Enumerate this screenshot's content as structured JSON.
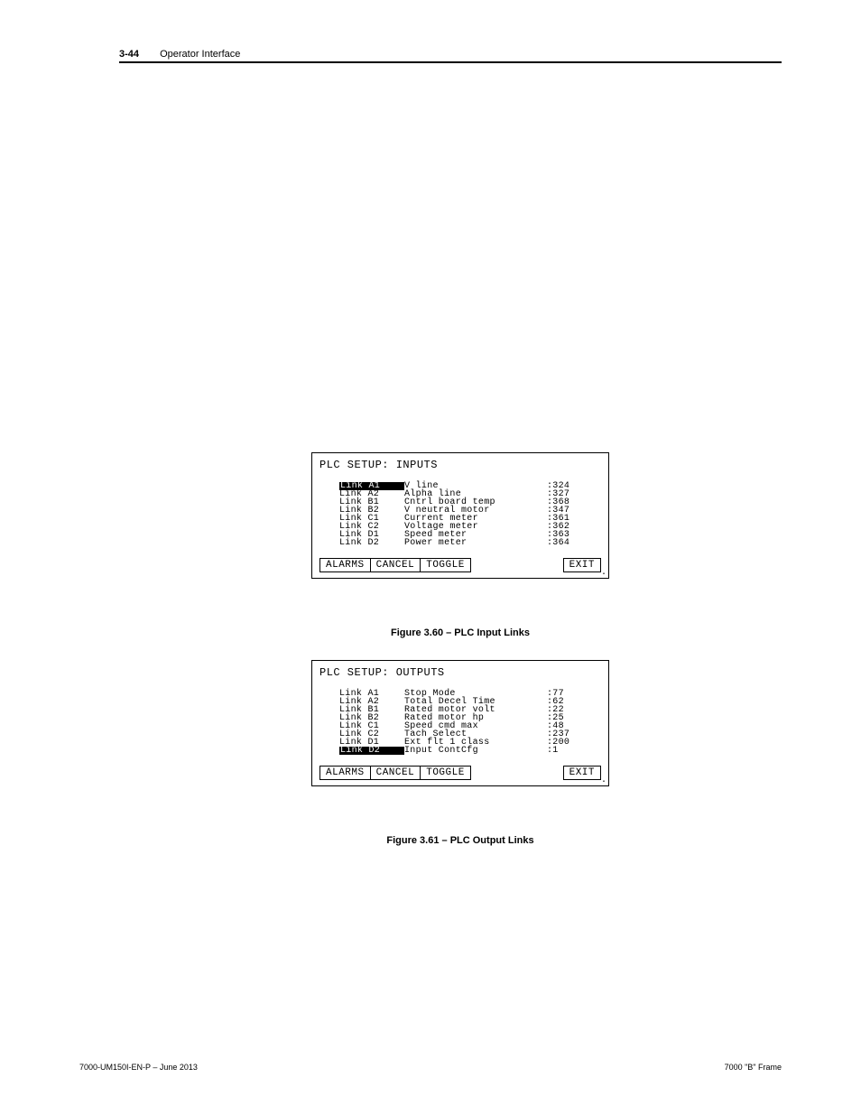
{
  "header": {
    "page_number": "3-44",
    "section_title": "Operator Interface"
  },
  "inputs_panel": {
    "title": "PLC SETUP: INPUTS",
    "rows": [
      {
        "link": "Link A1",
        "selected": true,
        "desc": "V line",
        "val": ":324"
      },
      {
        "link": "Link A2",
        "selected": false,
        "desc": "Alpha line",
        "val": ":327"
      },
      {
        "link": "Link B1",
        "selected": false,
        "desc": "Cntrl board temp",
        "val": ":368"
      },
      {
        "link": "Link B2",
        "selected": false,
        "desc": "V neutral motor",
        "val": ":347"
      },
      {
        "link": "Link C1",
        "selected": false,
        "desc": "Current meter",
        "val": ":361"
      },
      {
        "link": "Link C2",
        "selected": false,
        "desc": "Voltage meter",
        "val": ":362"
      },
      {
        "link": "Link D1",
        "selected": false,
        "desc": "Speed meter",
        "val": ":363"
      },
      {
        "link": "Link D2",
        "selected": false,
        "desc": "Power meter",
        "val": ":364"
      }
    ],
    "buttons": {
      "alarms": "ALARMS",
      "cancel": "CANCEL",
      "toggle": "TOGGLE",
      "exit": "EXIT"
    }
  },
  "caption_inputs": "Figure 3.60 – PLC Input Links",
  "outputs_panel": {
    "title": "PLC SETUP: OUTPUTS",
    "rows": [
      {
        "link": "Link A1",
        "selected": false,
        "desc": "Stop Mode",
        "val": ":77"
      },
      {
        "link": "Link A2",
        "selected": false,
        "desc": "Total Decel Time",
        "val": ":62"
      },
      {
        "link": "Link B1",
        "selected": false,
        "desc": "Rated motor volt",
        "val": ":22"
      },
      {
        "link": "Link B2",
        "selected": false,
        "desc": "Rated motor hp",
        "val": ":25"
      },
      {
        "link": "Link C1",
        "selected": false,
        "desc": "Speed cmd max",
        "val": ":48"
      },
      {
        "link": "Link C2",
        "selected": false,
        "desc": "Tach Select",
        "val": ":237"
      },
      {
        "link": "Link D1",
        "selected": false,
        "desc": "Ext flt 1 class",
        "val": ":200"
      },
      {
        "link": "Link D2",
        "selected": true,
        "desc": "Input ContCfg",
        "val": ":1"
      }
    ],
    "buttons": {
      "alarms": "ALARMS",
      "cancel": "CANCEL",
      "toggle": "TOGGLE",
      "exit": "EXIT"
    }
  },
  "caption_outputs": "Figure 3.61  – PLC Output Links",
  "footer": {
    "left": "7000-UM150I-EN-P – June 2013",
    "right": "7000 \"B\" Frame"
  }
}
